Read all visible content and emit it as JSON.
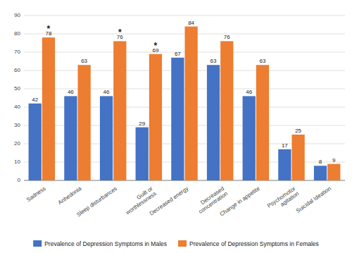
{
  "chart_data": {
    "type": "bar",
    "categories": [
      "Sadness",
      "Anhedonia",
      "Sleep disturbances",
      "Guilt or\nworthlessness",
      "Decreased energy",
      "Decreased\nconcentration",
      "Change in appetite",
      "Psychomotor\nagitation",
      "Suicidal Ideation"
    ],
    "series": [
      {
        "name": "Prevalence of Depression Symptoms in Males",
        "color": "#4472C4",
        "values": [
          42,
          46,
          46,
          29,
          67,
          63,
          46,
          17,
          8
        ]
      },
      {
        "name": "Prevalence of Depression Symptoms in Females",
        "color": "#ED7D31",
        "values": [
          78,
          63,
          76,
          69,
          84,
          76,
          63,
          25,
          9
        ]
      }
    ],
    "ylim": [
      0,
      90
    ],
    "yticks": [
      0,
      10,
      20,
      30,
      40,
      50,
      60,
      70,
      80,
      90
    ],
    "grid": true,
    "legend": "bottom",
    "data_labels": true,
    "annotations": [
      {
        "text": "*",
        "category": "Sadness",
        "series": "Prevalence of Depression Symptoms in Females"
      },
      {
        "text": "*",
        "category": "Sleep disturbances",
        "series": "Prevalence of Depression Symptoms in Females"
      },
      {
        "text": "*",
        "category": "Guilt or\nworthlessness",
        "series": "Prevalence of Depression Symptoms in Females"
      }
    ]
  }
}
